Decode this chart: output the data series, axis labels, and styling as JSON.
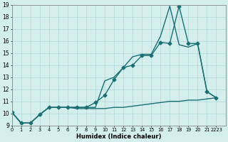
{
  "xlabel": "Humidex (Indice chaleur)",
  "xlim": [
    0,
    23
  ],
  "ylim": [
    9,
    19
  ],
  "xtick_labels": [
    "0",
    "1",
    "2",
    "3",
    "4",
    "5",
    "6",
    "7",
    "8",
    "9",
    "10",
    "11",
    "12",
    "13",
    "14",
    "15",
    "16",
    "17",
    "18",
    "19",
    "20",
    "21",
    "2223"
  ],
  "xtick_positions": [
    0,
    1,
    2,
    3,
    4,
    5,
    6,
    7,
    8,
    9,
    10,
    11,
    12,
    13,
    14,
    15,
    16,
    17,
    18,
    19,
    20,
    21,
    22
  ],
  "yticks": [
    9,
    10,
    11,
    12,
    13,
    14,
    15,
    16,
    17,
    18,
    19
  ],
  "background_color": "#d4eeee",
  "grid_color": "#b0d8d8",
  "line_color": "#1a7070",
  "series": [
    {
      "x": [
        0,
        1,
        2,
        3,
        4,
        5,
        6,
        7,
        8,
        9,
        10,
        11,
        12,
        13,
        14,
        15,
        16,
        17,
        18,
        19,
        20,
        21,
        22
      ],
      "y": [
        10.1,
        9.2,
        9.2,
        9.9,
        10.5,
        10.5,
        10.5,
        10.5,
        10.5,
        10.9,
        11.5,
        12.8,
        13.8,
        14.0,
        14.8,
        14.8,
        15.9,
        15.8,
        18.9,
        15.8,
        15.8,
        11.8,
        11.3
      ],
      "marker": "D",
      "markersize": 2.5,
      "linewidth": 1.0
    },
    {
      "x": [
        0,
        1,
        2,
        3,
        4,
        5,
        6,
        7,
        8,
        9,
        10,
        11,
        12,
        13,
        14,
        15,
        16,
        17,
        18,
        19,
        20,
        21,
        22
      ],
      "y": [
        10.1,
        9.2,
        9.2,
        9.9,
        10.5,
        10.5,
        10.5,
        10.5,
        10.5,
        10.5,
        12.7,
        13.0,
        13.8,
        14.7,
        14.9,
        14.9,
        16.4,
        18.9,
        15.7,
        15.5,
        15.8,
        11.8,
        11.3
      ],
      "marker": null,
      "markersize": 0,
      "linewidth": 1.0
    },
    {
      "x": [
        0,
        1,
        2,
        3,
        4,
        5,
        6,
        7,
        8,
        9,
        10,
        11,
        12,
        13,
        14,
        15,
        16,
        17,
        18,
        19,
        20,
        21,
        22
      ],
      "y": [
        10.1,
        9.2,
        9.2,
        9.9,
        10.5,
        10.5,
        10.5,
        10.4,
        10.4,
        10.4,
        10.4,
        10.5,
        10.5,
        10.6,
        10.7,
        10.8,
        10.9,
        11.0,
        11.0,
        11.1,
        11.1,
        11.2,
        11.3
      ],
      "marker": null,
      "markersize": 0,
      "linewidth": 1.0
    }
  ]
}
